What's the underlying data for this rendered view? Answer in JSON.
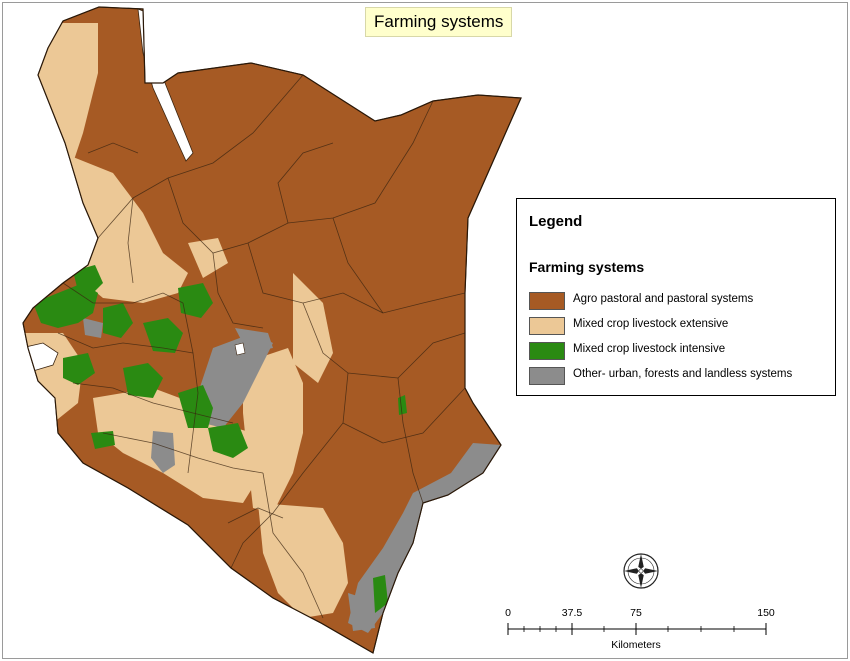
{
  "title": "Farming systems",
  "legend": {
    "title": "Legend",
    "subtitle": "Farming systems",
    "items": [
      {
        "label": "Agro pastoral and pastoral systems",
        "color": "#a65a24"
      },
      {
        "label": "Mixed crop livestock extensive",
        "color": "#ecc896"
      },
      {
        "label": "Mixed crop livestock intensive",
        "color": "#2a8a12"
      },
      {
        "label": "Other- urban, forests and landless systems",
        "color": "#8c8c8c"
      }
    ]
  },
  "scale": {
    "ticks": [
      "0",
      "37.5",
      "75",
      "150"
    ],
    "unit": "Kilometers"
  },
  "colors": {
    "pastoral": "#a65a24",
    "extensive": "#ecc896",
    "intensive": "#2a8a12",
    "other": "#8c8c8c",
    "water": "#ffffff",
    "boundary": "#3a2410"
  },
  "icons": [
    "compass-rose-icon"
  ]
}
